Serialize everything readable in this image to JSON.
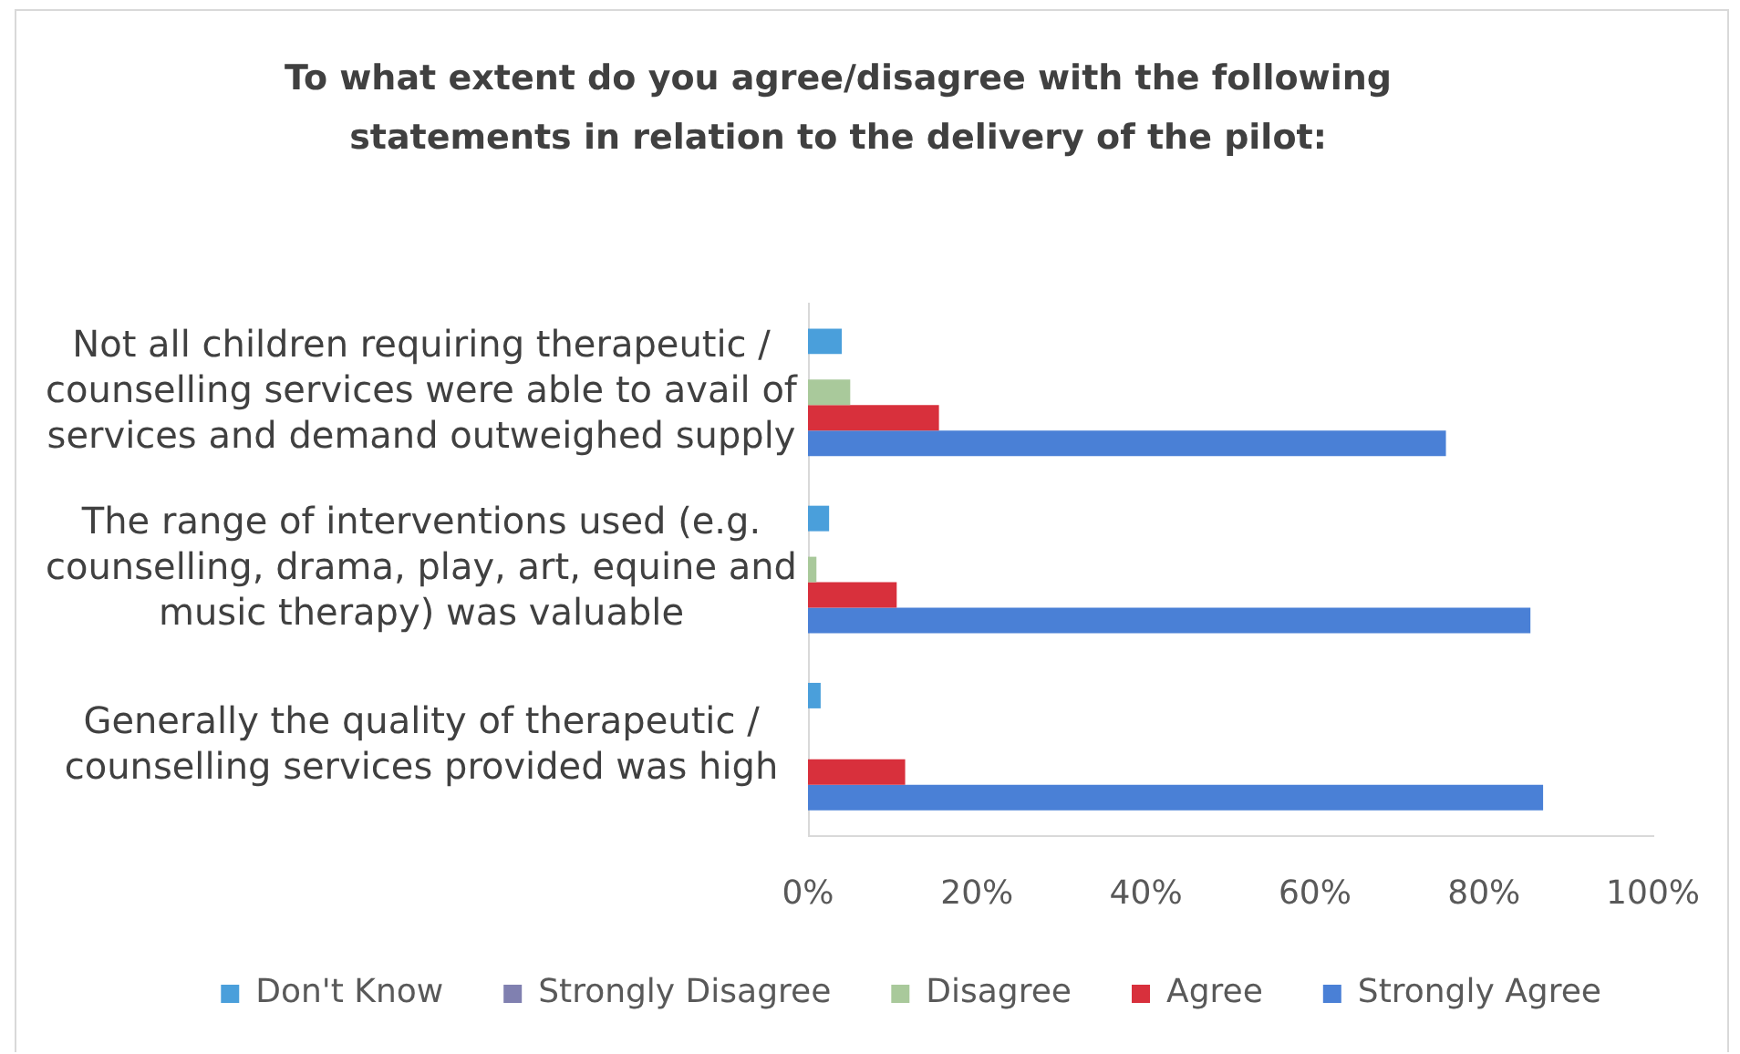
{
  "chart_data": {
    "type": "bar",
    "orientation": "horizontal",
    "title": "To what extent do you agree/disagree with the following statements in relation to the delivery of the pilot:",
    "categories": [
      "Not all children requiring therapeutic / counselling services were able to avail of services and demand outweighed supply",
      "The range of interventions used (e.g. counselling, drama, play, art, equine and music therapy) was valuable",
      "Generally the quality of therapeutic / counselling services provided was high"
    ],
    "series": [
      {
        "name": "Don't Know",
        "color": "#4a9fdb",
        "values": [
          4,
          2.5,
          1.5
        ]
      },
      {
        "name": "Strongly Disagree",
        "color": "#8080b0",
        "values": [
          0,
          0,
          0
        ]
      },
      {
        "name": "Disagree",
        "color": "#a9c99b",
        "values": [
          5,
          1,
          0
        ]
      },
      {
        "name": "Agree",
        "color": "#d8303c",
        "values": [
          15.5,
          10.5,
          11.5
        ]
      },
      {
        "name": "Strongly Agree",
        "color": "#4a80d6",
        "values": [
          75.5,
          85.5,
          87
        ]
      }
    ],
    "xlim": [
      0,
      100
    ],
    "xticks": [
      {
        "value": 0,
        "label": "0%"
      },
      {
        "value": 20,
        "label": "20%"
      },
      {
        "value": 40,
        "label": "40%"
      },
      {
        "value": 60,
        "label": "60%"
      },
      {
        "value": 80,
        "label": "80%"
      },
      {
        "value": 100,
        "label": "100%"
      }
    ],
    "legend": "bottom"
  }
}
